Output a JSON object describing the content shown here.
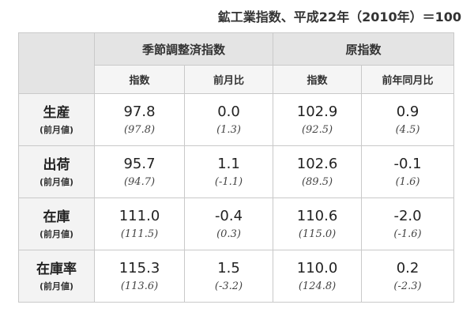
{
  "caption": "鉱工業指数、平成22年（2010年）＝100",
  "groups": [
    "季節調整済指数",
    "原指数"
  ],
  "subheaders": [
    "指数",
    "前月比",
    "指数",
    "前年同月比"
  ],
  "prev_label": "(前月値)",
  "rows": [
    {
      "name": "生産",
      "values": [
        "97.8",
        "0.0",
        "102.9",
        "0.9"
      ],
      "prev": [
        "(97.8)",
        "(1.3)",
        "(92.5)",
        "(4.5)"
      ]
    },
    {
      "name": "出荷",
      "values": [
        "95.7",
        "1.1",
        "102.6",
        "-0.1"
      ],
      "prev": [
        "(94.7)",
        "(-1.1)",
        "(89.5)",
        "(1.6)"
      ]
    },
    {
      "name": "在庫",
      "values": [
        "111.0",
        "-0.4",
        "110.6",
        "-2.0"
      ],
      "prev": [
        "(111.5)",
        "(0.3)",
        "(115.0)",
        "(-1.6)"
      ]
    },
    {
      "name": "在庫率",
      "values": [
        "115.3",
        "1.5",
        "110.0",
        "0.2"
      ],
      "prev": [
        "(113.6)",
        "(-3.2)",
        "(124.8)",
        "(-2.3)"
      ]
    }
  ]
}
